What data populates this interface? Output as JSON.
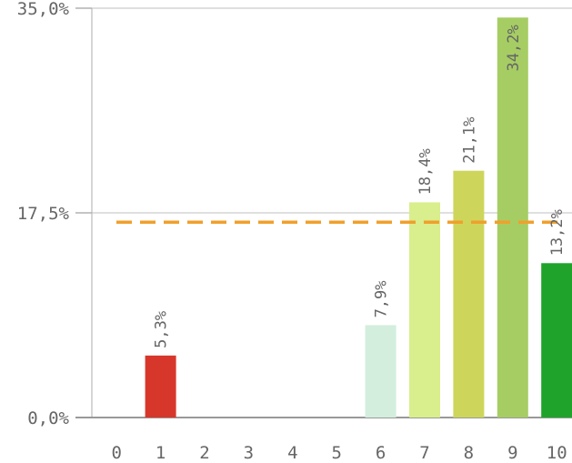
{
  "chart_data": {
    "type": "bar",
    "categories": [
      "0",
      "1",
      "2",
      "3",
      "4",
      "5",
      "6",
      "7",
      "8",
      "9",
      "10"
    ],
    "values": [
      0,
      5.3,
      0,
      0,
      0,
      0,
      7.9,
      18.4,
      21.1,
      34.2,
      13.2
    ],
    "data_labels": [
      "",
      "5,3%",
      "",
      "",
      "",
      "",
      "7,9%",
      "18,4%",
      "21,1%",
      "34,2%",
      "13,2%"
    ],
    "bar_colors": [
      "#d7372b",
      "#d7372b",
      "#d7372b",
      "#d7372b",
      "#d7372b",
      "#d7372b",
      "#d3eedd",
      "#d9ee8c",
      "#cdd65b",
      "#a6cd63",
      "#1fa32b"
    ],
    "ylim": [
      0,
      35
    ],
    "yticks": [
      0,
      17.5,
      35
    ],
    "ytick_labels": [
      "0,0%",
      "17,5%",
      "35,0%"
    ],
    "average_line": 16.7,
    "average_line_color": "#f0a02c",
    "grid": true,
    "title": "",
    "xlabel": "",
    "ylabel": ""
  }
}
